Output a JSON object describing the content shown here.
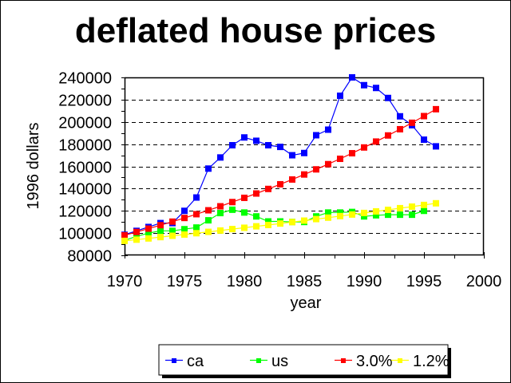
{
  "chart_data": {
    "type": "line",
    "title": "deflated house prices",
    "xlabel": "year",
    "ylabel": "1996 dollars",
    "xlim": [
      1970,
      2000
    ],
    "ylim": [
      80000,
      240000
    ],
    "xticks": [
      1970,
      1975,
      1980,
      1985,
      1990,
      1995,
      2000
    ],
    "xtick_labels": [
      "1970",
      "1975",
      "1980",
      "1985",
      "1990",
      "1995",
      "2000"
    ],
    "yticks": [
      80000,
      100000,
      120000,
      140000,
      160000,
      180000,
      200000,
      220000,
      240000
    ],
    "ytick_labels": [
      "80000",
      "100000",
      "120000",
      "140000",
      "160000",
      "180000",
      "200000",
      "220000",
      "240000"
    ],
    "grid": "horizontal dashed",
    "legend_position": "bottom",
    "series": [
      {
        "name": "ca",
        "color": "#0000ff",
        "x": [
          1970,
          1971,
          1972,
          1973,
          1974,
          1975,
          1976,
          1977,
          1978,
          1979,
          1980,
          1981,
          1982,
          1983,
          1984,
          1985,
          1986,
          1987,
          1988,
          1989,
          1990,
          1991,
          1992,
          1993,
          1994,
          1995,
          1996
        ],
        "values": [
          98500,
          102000,
          105500,
          109000,
          109000,
          120000,
          132000,
          158000,
          168000,
          179000,
          186000,
          183000,
          179000,
          177500,
          170000,
          172000,
          188000,
          193000,
          223500,
          240000,
          233000,
          230500,
          221500,
          205000,
          197000,
          184000,
          178000
        ]
      },
      {
        "name": "us",
        "color": "#00ff00",
        "x": [
          1970,
          1971,
          1972,
          1973,
          1974,
          1975,
          1976,
          1977,
          1978,
          1979,
          1980,
          1981,
          1982,
          1983,
          1984,
          1985,
          1986,
          1987,
          1988,
          1989,
          1990,
          1991,
          1992,
          1993,
          1994,
          1995
        ],
        "values": [
          93500,
          97000,
          100000,
          102000,
          102000,
          103500,
          105000,
          111500,
          118000,
          121000,
          118500,
          115000,
          110500,
          110500,
          110000,
          110000,
          115000,
          118500,
          118500,
          119000,
          115000,
          116000,
          116500,
          116500,
          116500,
          120000
        ]
      },
      {
        "name": "3.0%",
        "color": "#ff0000",
        "x": [
          1970,
          1971,
          1972,
          1973,
          1974,
          1975,
          1976,
          1977,
          1978,
          1979,
          1980,
          1981,
          1982,
          1983,
          1984,
          1985,
          1986,
          1987,
          1988,
          1989,
          1990,
          1991,
          1992,
          1993,
          1994,
          1995,
          1996
        ],
        "values": [
          98000,
          101000,
          104000,
          107100,
          110300,
          113600,
          117000,
          120500,
          124100,
          127900,
          131700,
          135600,
          139700,
          143900,
          148200,
          152700,
          157300,
          162000,
          166800,
          171800,
          177000,
          182300,
          187800,
          193400,
          199200,
          205200,
          211400
        ]
      },
      {
        "name": "1.2%",
        "color": "#ffff00",
        "x": [
          1970,
          1971,
          1972,
          1973,
          1974,
          1975,
          1976,
          1977,
          1978,
          1979,
          1980,
          1981,
          1982,
          1983,
          1984,
          1985,
          1986,
          1987,
          1988,
          1989,
          1990,
          1991,
          1992,
          1993,
          1994,
          1995,
          1996
        ],
        "values": [
          93000,
          94100,
          95200,
          96400,
          97600,
          98700,
          99900,
          101100,
          102300,
          103600,
          104800,
          106100,
          107300,
          108600,
          109900,
          111200,
          112600,
          113900,
          115300,
          116700,
          118100,
          119500,
          120900,
          122400,
          123800,
          125300,
          126800
        ]
      }
    ]
  }
}
